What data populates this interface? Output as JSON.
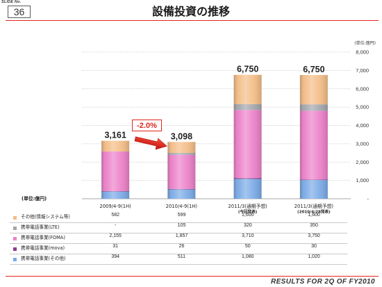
{
  "header": {
    "slide_no_label": "SLIDE No.",
    "slide_no": "36"
  },
  "chart_data": {
    "type": "bar",
    "stacked": true,
    "title": "設備投資の推移",
    "categories": [
      "2009/4-9(1H)",
      "2010/4-9(1H)",
      "2011/3(通期予想)",
      "2011/3(通期予想)"
    ],
    "category_notes": [
      "",
      "",
      "(今回発表)",
      "(2010/4/28発表)"
    ],
    "series": [
      {
        "name": "携帯電話事業(その他)",
        "values": [
          394,
          511,
          1080,
          1020
        ],
        "color": "#7aaae6"
      },
      {
        "name": "携帯電話事業(mova)",
        "values": [
          31,
          26,
          50,
          30
        ],
        "color": "#8e3b8c"
      },
      {
        "name": "携帯電話事業(FOMA)",
        "values": [
          2155,
          1857,
          3710,
          3750
        ],
        "color": "#ec80c9"
      },
      {
        "name": "携帯電話事業(LTE)",
        "values": [
          null,
          105,
          320,
          350
        ],
        "color": "#a2a6ac"
      },
      {
        "name": "その他(情報システム等)",
        "values": [
          582,
          599,
          1600,
          1600
        ],
        "color": "#f3bd86"
      }
    ],
    "totals": [
      "3,161",
      "3,098",
      "6,750",
      "6,750"
    ],
    "yaxis": {
      "unit": "(単位:億円)",
      "position": "right",
      "min": 0,
      "max": 8000,
      "step": 1000,
      "tick_labels": [
        "-",
        "1,000",
        "2,000",
        "3,000",
        "4,000",
        "5,000",
        "6,000",
        "7,000",
        "8,000"
      ]
    },
    "grid": true,
    "annotation": {
      "text": "-2.0%"
    }
  },
  "table": {
    "unit_label": "(単位:億円)",
    "rows": [
      {
        "cells": [
          "582",
          "599",
          "1,600",
          "1,600"
        ]
      },
      {
        "cells": [
          "-",
          "105",
          "320",
          "350"
        ]
      },
      {
        "cells": [
          "2,155",
          "1,857",
          "3,710",
          "3,750"
        ]
      },
      {
        "cells": [
          "31",
          "26",
          "50",
          "30"
        ]
      },
      {
        "cells": [
          "394",
          "511",
          "1,080",
          "1,020"
        ]
      }
    ]
  },
  "footer": {
    "text": "RESULTS FOR 2Q OF FY2010"
  },
  "colors": {
    "accent": "#e2231a"
  }
}
